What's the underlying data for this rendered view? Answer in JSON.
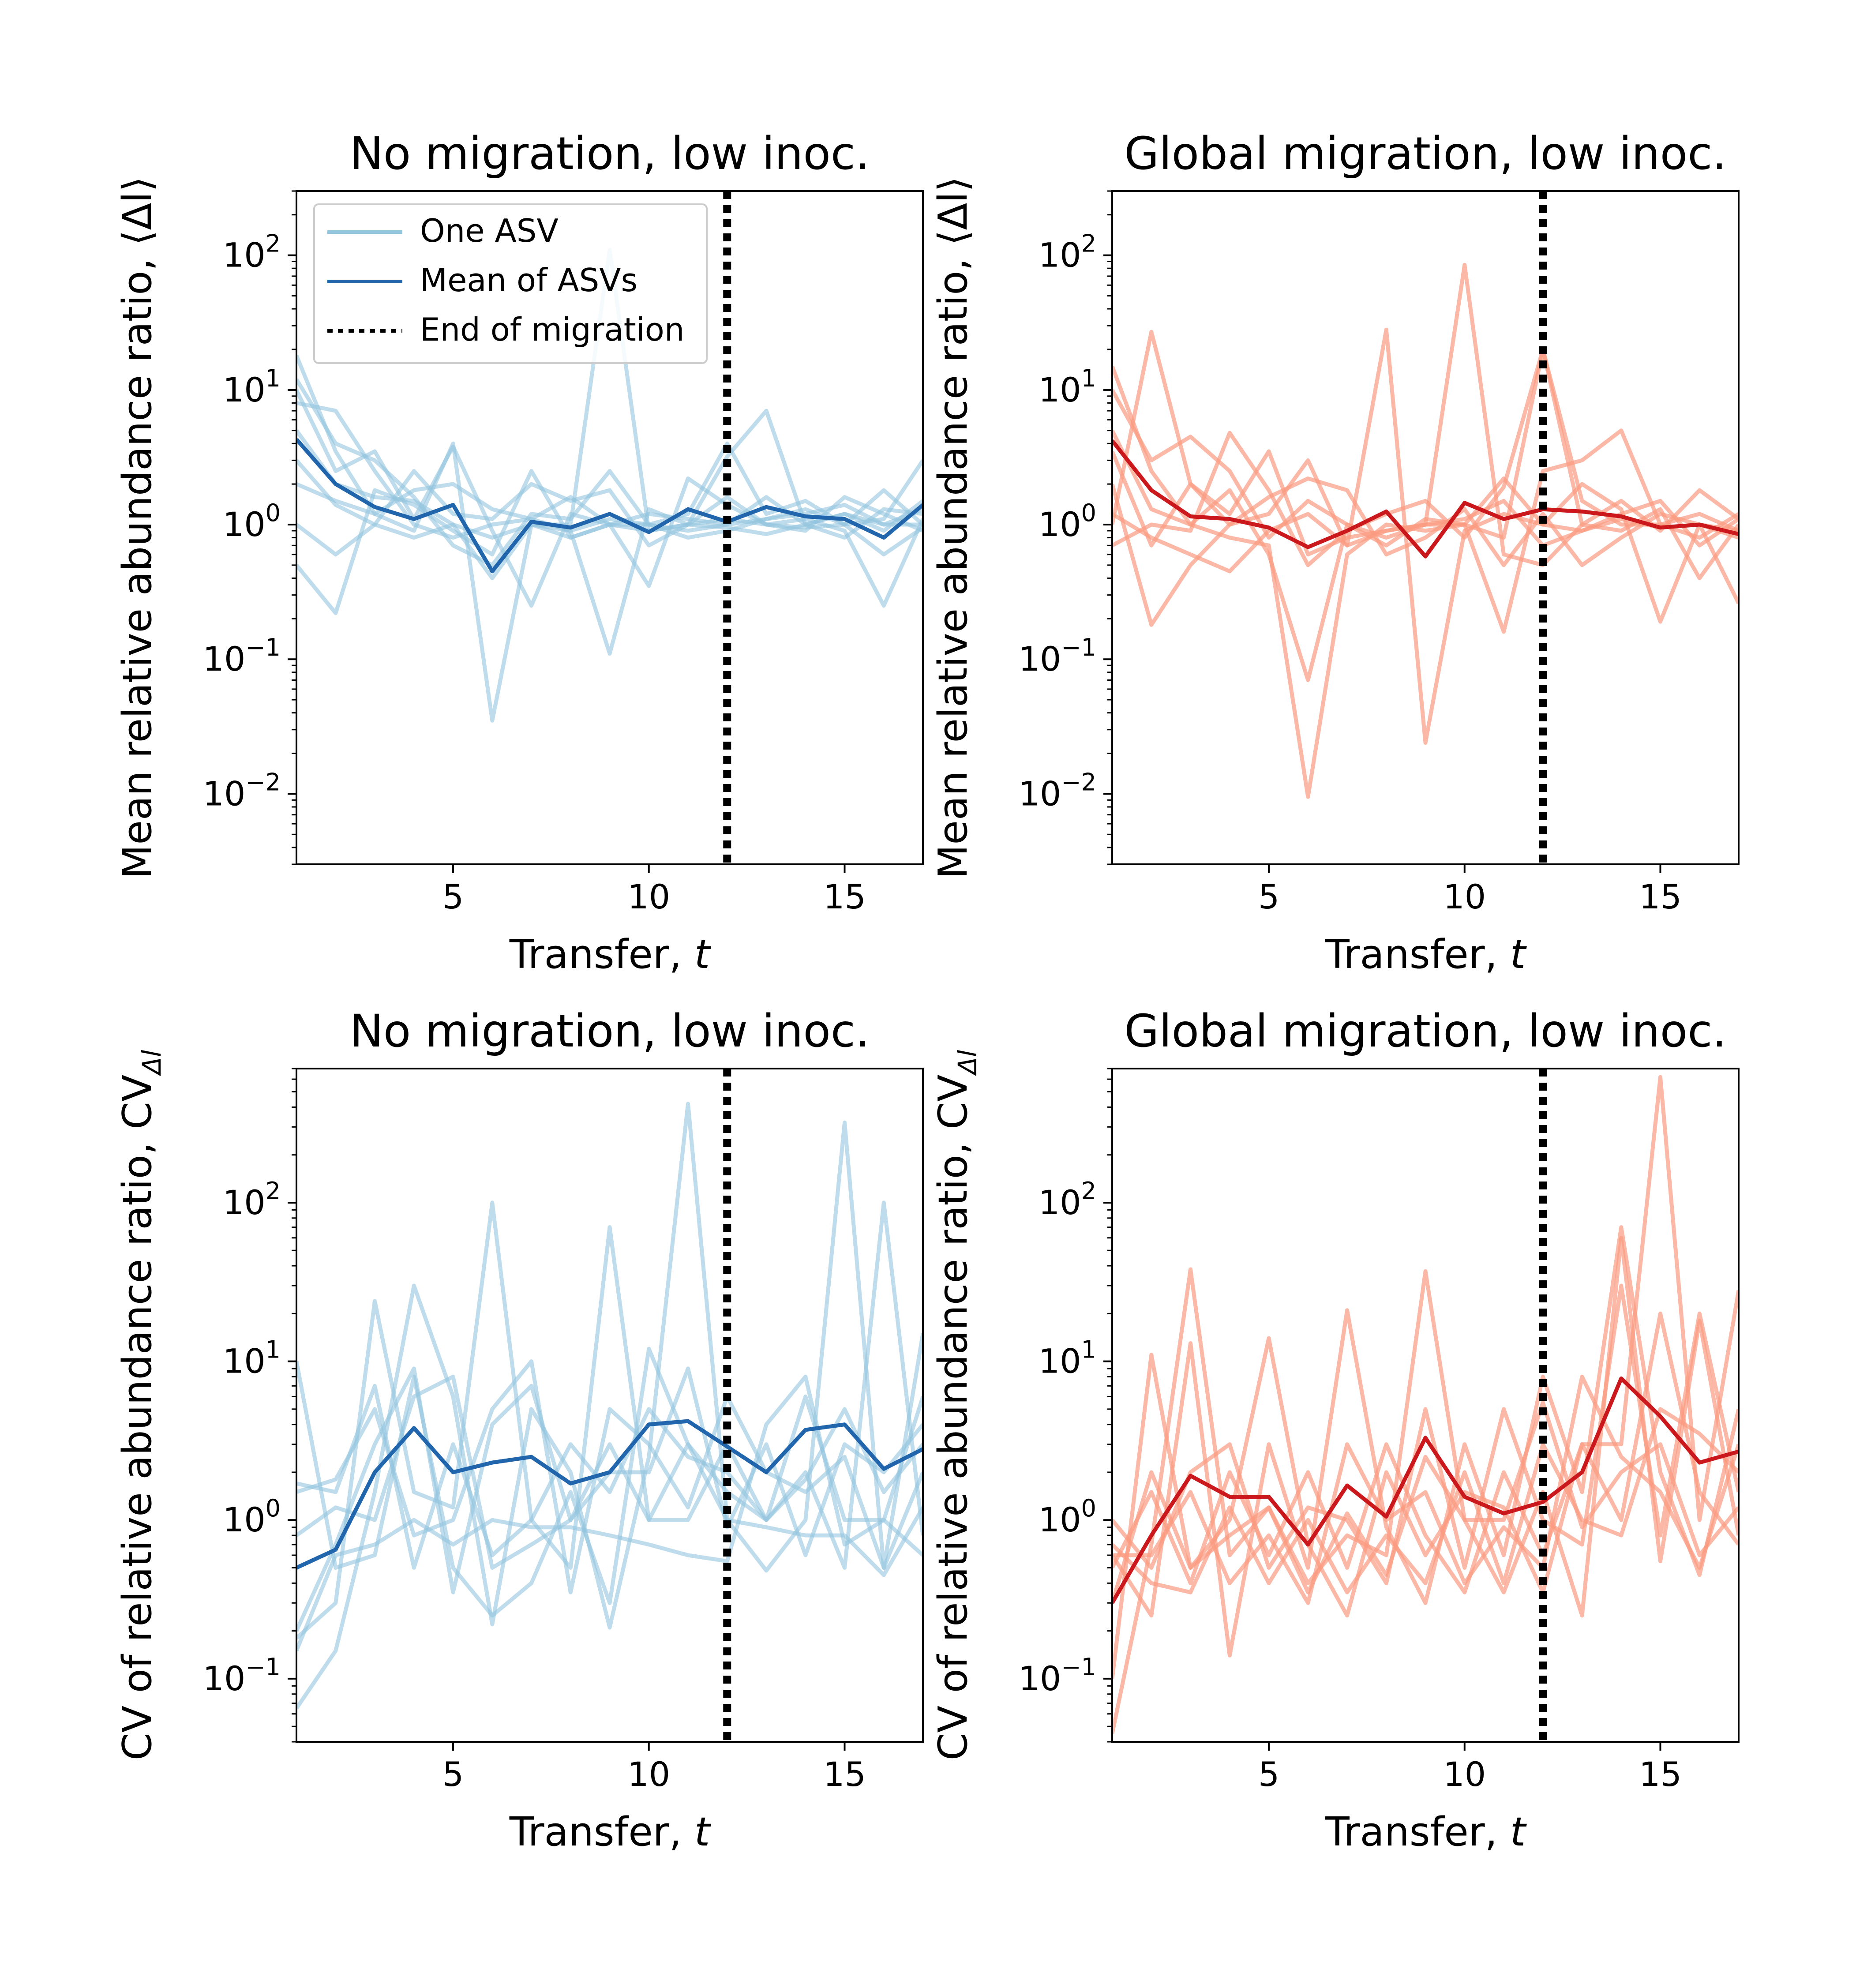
{
  "chart_data": [
    {
      "type": "line",
      "title": "No migration, low inoc.",
      "xlabel": "Transfer, t",
      "ylabel": "Mean relative abundance ratio, ⟨Δl⟩",
      "xlim": [
        1,
        17
      ],
      "ylim": [
        0.003,
        300
      ],
      "yscale": "log",
      "xticks": [
        5,
        10,
        15
      ],
      "yticks": [
        0.01,
        0.1,
        1,
        10,
        100
      ],
      "ytick_labels": [
        [
          "10",
          "−2"
        ],
        [
          "10",
          "−1"
        ],
        [
          "10",
          "0"
        ],
        [
          "10",
          "1"
        ],
        [
          "10",
          "2"
        ]
      ],
      "xtick_labels": [
        "5",
        "10",
        "15"
      ],
      "vline_x": 12,
      "legend": {
        "position": "top-left",
        "entries": [
          "One ASV",
          "Mean of ASVs",
          "End of migration"
        ]
      },
      "colors": {
        "asv": "#92c5de",
        "mean": "#2166ac"
      },
      "x": [
        1,
        2,
        3,
        4,
        5,
        6,
        7,
        8,
        9,
        10,
        11,
        12,
        13,
        14,
        15,
        16,
        17
      ],
      "mean_series": [
        4.3,
        2.0,
        1.35,
        1.1,
        1.4,
        0.45,
        1.05,
        0.95,
        1.2,
        0.88,
        1.3,
        1.05,
        1.35,
        1.15,
        1.1,
        0.8,
        1.4
      ],
      "asv_series": [
        [
          18,
          3.5,
          1.2,
          0.9,
          4.0,
          0.035,
          1.0,
          1.0,
          110,
          0.9,
          1.0,
          1.1,
          1.0,
          0.95,
          1.0,
          1.1,
          3.0
        ],
        [
          8,
          7.0,
          2.5,
          1.0,
          0.8,
          1.0,
          1.1,
          0.9,
          0.11,
          1.3,
          1.0,
          3.2,
          7.0,
          1.0,
          1.2,
          0.9,
          1.5
        ],
        [
          0.5,
          0.22,
          1.8,
          1.4,
          0.9,
          0.6,
          2.5,
          0.8,
          1.0,
          0.35,
          2.2,
          1.4,
          1.0,
          1.1,
          0.9,
          0.25,
          1.1
        ],
        [
          10,
          2.5,
          3.5,
          1.1,
          3.8,
          0.9,
          0.25,
          1.2,
          1.0,
          0.9,
          1.0,
          0.95,
          0.85,
          1.0,
          1.2,
          1.0,
          1.0
        ],
        [
          1.0,
          0.6,
          1.0,
          0.8,
          1.0,
          0.4,
          1.0,
          0.8,
          1.0,
          1.2,
          1.1,
          1.0,
          1.1,
          1.3,
          1.0,
          1.8,
          1.0
        ],
        [
          3.0,
          1.4,
          1.0,
          2.5,
          1.2,
          1.1,
          2.0,
          1.5,
          1.8,
          0.7,
          1.0,
          1.6,
          1.0,
          0.9,
          1.6,
          1.2,
          0.9
        ],
        [
          5.0,
          2.0,
          1.6,
          1.5,
          1.0,
          0.8,
          1.0,
          0.9,
          1.1,
          1.0,
          0.9,
          1.0,
          1.6,
          1.0,
          0.8,
          1.3,
          1.2
        ],
        [
          12,
          4.0,
          3.0,
          1.6,
          0.7,
          0.5,
          1.2,
          1.1,
          2.5,
          1.0,
          1.2,
          4.0,
          1.2,
          1.5,
          1.0,
          0.6,
          0.95
        ],
        [
          2.0,
          1.5,
          1.2,
          1.8,
          2.0,
          1.3,
          1.1,
          1.6,
          1.0,
          1.0,
          0.8,
          0.9,
          1.1,
          1.2,
          1.4,
          1.0,
          1.3
        ]
      ]
    },
    {
      "type": "line",
      "title": "Global migration, low inoc.",
      "xlabel": "Transfer, t",
      "ylabel": "Mean relative abundance ratio, ⟨Δl⟩",
      "xlim": [
        1,
        17
      ],
      "ylim": [
        0.003,
        300
      ],
      "yscale": "log",
      "xticks": [
        5,
        10,
        15
      ],
      "yticks": [
        0.01,
        0.1,
        1,
        10,
        100
      ],
      "ytick_labels": [
        [
          "10",
          "−2"
        ],
        [
          "10",
          "−1"
        ],
        [
          "10",
          "0"
        ],
        [
          "10",
          "1"
        ],
        [
          "10",
          "2"
        ]
      ],
      "xtick_labels": [
        "5",
        "10",
        "15"
      ],
      "vline_x": 12,
      "colors": {
        "asv": "#fb9a80",
        "mean": "#cb181d"
      },
      "x": [
        1,
        2,
        3,
        4,
        5,
        6,
        7,
        8,
        9,
        10,
        11,
        12,
        13,
        14,
        15,
        16,
        17
      ],
      "mean_series": [
        4.2,
        1.8,
        1.15,
        1.1,
        0.95,
        0.68,
        0.9,
        1.25,
        0.58,
        1.45,
        1.1,
        1.3,
        1.25,
        1.15,
        0.95,
        1.0,
        0.85
      ],
      "asv_series": [
        [
          15,
          2.5,
          1.0,
          0.8,
          0.7,
          0.0095,
          0.6,
          1.0,
          0.9,
          1.0,
          0.8,
          20,
          1.5,
          1.0,
          1.0,
          1.2,
          0.9
        ],
        [
          2.0,
          0.18,
          0.5,
          1.0,
          1.2,
          3.0,
          0.7,
          28,
          0.024,
          0.9,
          1.2,
          1.0,
          2.0,
          1.3,
          0.19,
          1.0,
          0.26
        ],
        [
          1.0,
          27,
          2.0,
          1.2,
          3.5,
          0.6,
          0.8,
          0.9,
          1.0,
          85,
          0.6,
          0.5,
          1.0,
          1.5,
          0.9,
          1.8,
          1.1
        ],
        [
          10,
          3.0,
          4.5,
          2.5,
          0.8,
          1.5,
          1.0,
          0.7,
          1.1,
          1.0,
          0.16,
          2.5,
          3.0,
          5.0,
          1.0,
          0.8,
          1.2
        ],
        [
          0.7,
          1.0,
          0.9,
          4.8,
          1.8,
          0.5,
          0.9,
          1.2,
          1.5,
          0.8,
          1.9,
          20,
          1.0,
          0.9,
          1.3,
          0.4,
          1.0
        ],
        [
          1.2,
          0.8,
          0.6,
          0.45,
          0.9,
          1.2,
          0.7,
          0.9,
          1.0,
          1.1,
          1.5,
          0.7,
          0.9,
          1.1,
          0.95,
          1.0,
          0.9
        ],
        [
          3.5,
          0.7,
          2.0,
          1.0,
          1.6,
          2.2,
          1.8,
          0.6,
          0.8,
          1.3,
          0.5,
          1.2,
          0.5,
          0.8,
          1.2,
          1.0,
          0.8
        ],
        [
          5.0,
          1.3,
          1.0,
          1.8,
          0.6,
          0.07,
          1.0,
          0.8,
          1.0,
          1.0,
          2.2,
          1.0,
          0.9,
          1.2,
          1.5,
          0.7,
          1.1
        ]
      ]
    },
    {
      "type": "line",
      "title": "No migration, low inoc.",
      "xlabel": "Transfer, t",
      "ylabel": "CV of relative abundance ratio, CVΔl",
      "xlim": [
        1,
        17
      ],
      "ylim": [
        0.04,
        700
      ],
      "yscale": "log",
      "xticks": [
        5,
        10,
        15
      ],
      "yticks": [
        0.1,
        1,
        10,
        100
      ],
      "ytick_labels": [
        [
          "10",
          "−1"
        ],
        [
          "10",
          "0"
        ],
        [
          "10",
          "1"
        ],
        [
          "10",
          "2"
        ]
      ],
      "xtick_labels": [
        "5",
        "10",
        "15"
      ],
      "vline_x": 12,
      "colors": {
        "asv": "#92c5de",
        "mean": "#2166ac"
      },
      "x": [
        1,
        2,
        3,
        4,
        5,
        6,
        7,
        8,
        9,
        10,
        11,
        12,
        13,
        14,
        15,
        16,
        17
      ],
      "mean_series": [
        0.5,
        0.65,
        2.0,
        3.8,
        2.0,
        2.3,
        2.5,
        1.7,
        2.0,
        4.0,
        4.2,
        2.9,
        2.0,
        3.7,
        4.0,
        2.1,
        2.8
      ],
      "asv_series": [
        [
          0.065,
          0.15,
          1.5,
          30,
          6.0,
          0.22,
          5.0,
          2.0,
          0.21,
          2.5,
          420,
          1.0,
          0.48,
          1.0,
          320,
          0.5,
          15
        ],
        [
          0.18,
          0.3,
          24,
          1.5,
          1.2,
          100,
          1.0,
          0.5,
          70,
          1.0,
          1.0,
          3.0,
          1.0,
          6.0,
          1.0,
          1.0,
          0.6
        ],
        [
          10,
          0.5,
          0.6,
          8.0,
          0.5,
          0.25,
          0.4,
          1.5,
          0.3,
          12,
          3.0,
          1.5,
          1.0,
          2.0,
          0.5,
          100,
          0.8
        ],
        [
          1.5,
          1.8,
          5.0,
          0.8,
          1.0,
          5.0,
          10,
          0.35,
          5.0,
          3.0,
          1.2,
          6.0,
          2.0,
          1.5,
          2.5,
          0.5,
          2.0
        ],
        [
          0.8,
          1.2,
          1.0,
          6.0,
          8.0,
          0.5,
          0.7,
          1.0,
          3.0,
          1.0,
          3.0,
          1.0,
          0.9,
          0.8,
          0.8,
          0.45,
          1.2
        ],
        [
          1.7,
          1.5,
          7.0,
          0.5,
          3.0,
          0.6,
          1.0,
          3.0,
          1.5,
          5.0,
          2.5,
          2.0,
          1.0,
          1.8,
          5.0,
          1.5,
          3.0
        ],
        [
          0.2,
          0.7,
          3.0,
          9.0,
          0.35,
          4.0,
          7.0,
          1.0,
          2.0,
          2.0,
          9.0,
          0.9,
          3.0,
          0.6,
          3.0,
          2.0,
          4.0
        ],
        [
          0.15,
          0.6,
          0.7,
          1.0,
          0.7,
          1.0,
          0.9,
          0.9,
          0.8,
          0.7,
          0.6,
          0.55,
          4.0,
          8.0,
          0.7,
          1.0,
          6.0
        ]
      ]
    },
    {
      "type": "line",
      "title": "Global migration, low inoc.",
      "xlabel": "Transfer, t",
      "ylabel": "CV of relative abundance ratio, CVΔl",
      "xlim": [
        1,
        17
      ],
      "ylim": [
        0.04,
        700
      ],
      "yscale": "log",
      "xticks": [
        5,
        10,
        15
      ],
      "yticks": [
        0.1,
        1,
        10,
        100
      ],
      "ytick_labels": [
        [
          "10",
          "−1"
        ],
        [
          "10",
          "0"
        ],
        [
          "10",
          "1"
        ],
        [
          "10",
          "2"
        ]
      ],
      "xtick_labels": [
        "5",
        "10",
        "15"
      ],
      "vline_x": 12,
      "colors": {
        "asv": "#fb9a80",
        "mean": "#cb181d"
      },
      "x": [
        1,
        2,
        3,
        4,
        5,
        6,
        7,
        8,
        9,
        10,
        11,
        12,
        13,
        14,
        15,
        16,
        17
      ],
      "mean_series": [
        0.3,
        0.8,
        1.9,
        1.4,
        1.4,
        0.7,
        1.65,
        1.05,
        3.3,
        1.4,
        1.1,
        1.3,
        2.0,
        7.8,
        4.5,
        2.3,
        2.7
      ],
      "asv_series": [
        [
          0.045,
          0.7,
          38,
          0.6,
          1.2,
          0.4,
          0.8,
          0.6,
          37,
          1.0,
          0.35,
          1.5,
          0.25,
          60,
          0.55,
          18,
          0.8
        ],
        [
          0.1,
          11,
          0.5,
          1.0,
          14,
          0.7,
          0.25,
          2.0,
          0.6,
          1.5,
          1.2,
          0.35,
          3.0,
          3.0,
          620,
          1.0,
          28
        ],
        [
          0.6,
          0.25,
          13,
          0.14,
          3.0,
          0.5,
          21,
          0.9,
          0.3,
          3.0,
          0.6,
          8.0,
          1.5,
          70,
          2.0,
          0.45,
          5.0
        ],
        [
          1.0,
          0.5,
          2.0,
          3.0,
          0.5,
          1.2,
          1.0,
          0.4,
          5.0,
          0.5,
          5.0,
          1.0,
          0.7,
          30,
          0.8,
          20,
          1.5
        ],
        [
          0.5,
          1.5,
          0.4,
          2.0,
          0.6,
          2.0,
          0.5,
          3.0,
          0.8,
          0.35,
          2.0,
          0.6,
          3.0,
          1.0,
          20,
          1.5,
          0.7
        ],
        [
          0.3,
          2.0,
          0.5,
          0.8,
          1.2,
          0.35,
          1.1,
          0.45,
          2.5,
          1.0,
          1.0,
          5.5,
          0.9,
          2.0,
          3.0,
          0.6,
          1.2
        ],
        [
          0.6,
          0.6,
          1.5,
          0.4,
          0.8,
          0.3,
          3.0,
          1.0,
          1.5,
          0.4,
          0.9,
          0.5,
          8.0,
          2.5,
          1.5,
          0.5,
          3.0
        ],
        [
          0.7,
          0.4,
          0.35,
          1.2,
          0.4,
          1.0,
          0.35,
          0.8,
          0.4,
          2.0,
          0.4,
          3.0,
          1.0,
          0.8,
          5.0,
          3.5,
          2.0
        ]
      ]
    }
  ]
}
